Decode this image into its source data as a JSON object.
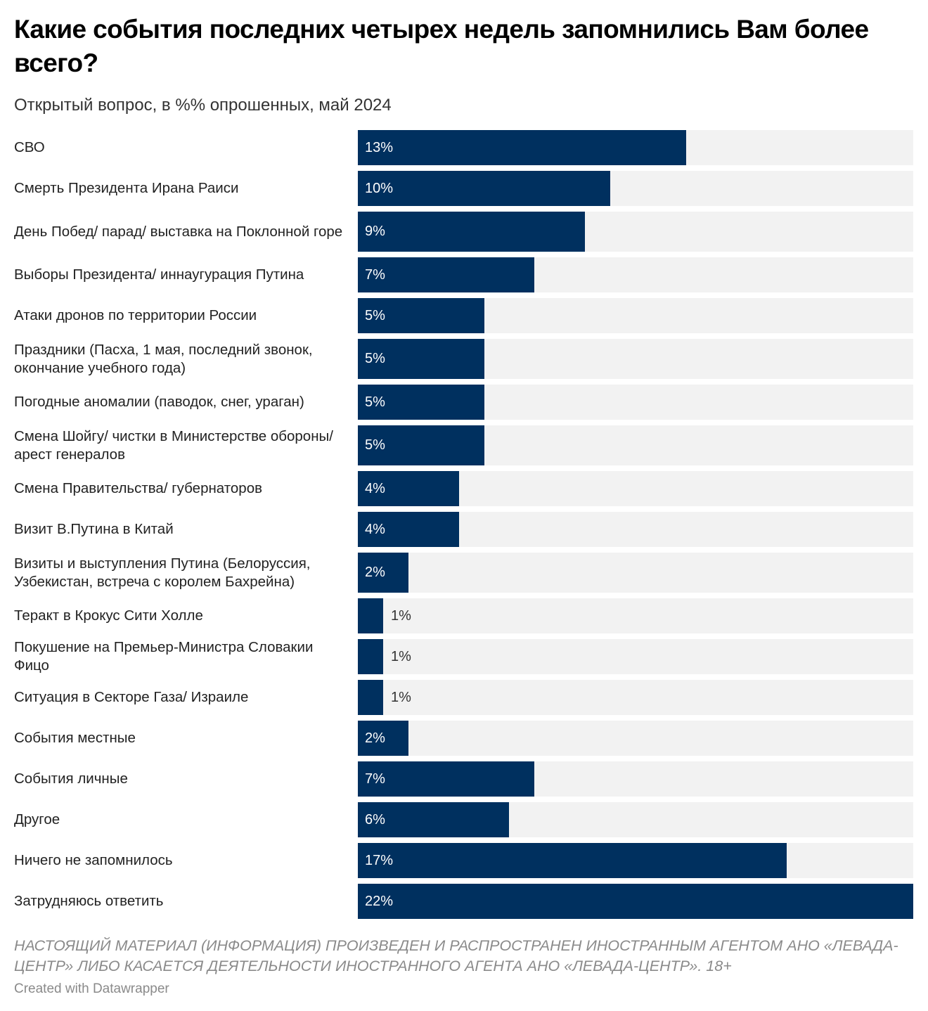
{
  "header": {
    "title": "Какие события последних четырех недель запомнились Вам более всего?",
    "subtitle": "Открытый вопрос, в %% опрошенных, май 2024"
  },
  "chart_data": {
    "type": "bar",
    "orientation": "horizontal",
    "title": "Какие события последних четырех недель запомнились Вам более всего?",
    "subtitle": "Открытый вопрос, в %% опрошенных, май 2024",
    "unit": "%",
    "xlim": [
      0,
      22
    ],
    "colors": {
      "bar": "#00305f",
      "track": "#f2f2f2"
    },
    "categories": [
      "СВО",
      "Смерть Президента Ирана Раиси",
      "День Побед/ парад/ выставка на Поклонной горе",
      "Выборы Президента/ иннаугурация Путина",
      "Атаки дронов по территории России",
      "Праздники (Пасха, 1 мая, последний звонок, окончание учебного года)",
      "Погодные аномалии (паводок, снег, ураган)",
      "Смена Шойгу/ чистки в Министерстве обороны/ арест генералов",
      "Смена Правительства/ губернаторов",
      "Визит В.Путина в Китай",
      "Визиты и выступления Путина (Белоруссия, Узбекистан, встреча с королем Бахрейна)",
      "Теракт в Крокус Сити Холле",
      "Покушение на Премьер-Министра Словакии Фицо",
      "Ситуация в Секторе Газа/ Израиле",
      "События местные",
      "События личные",
      "Другое",
      "Ничего не запомнилось",
      "Затрудняюсь ответить"
    ],
    "values": [
      13,
      10,
      9,
      7,
      5,
      5,
      5,
      5,
      4,
      4,
      2,
      1,
      1,
      1,
      2,
      7,
      6,
      17,
      22
    ],
    "value_labels": [
      "13%",
      "10%",
      "9%",
      "7%",
      "5%",
      "5%",
      "5%",
      "5%",
      "4%",
      "4%",
      "2%",
      "1%",
      "1%",
      "1%",
      "2%",
      "7%",
      "6%",
      "17%",
      "22%"
    ]
  },
  "footer": {
    "notice": "НАСТОЯЩИЙ МАТЕРИАЛ (ИНФОРМАЦИЯ) ПРОИЗВЕДЕН И РАСПРОСТРАНЕН ИНОСТРАННЫМ АГЕНТОМ АНО «ЛЕВАДА-ЦЕНТР» ЛИБО КАСАЕТСЯ ДЕЯТЕЛЬНОСТИ ИНОСТРАННОГО АГЕНТА АНО «ЛЕВАДА-ЦЕНТР». 18+",
    "credit": "Created with Datawrapper"
  }
}
